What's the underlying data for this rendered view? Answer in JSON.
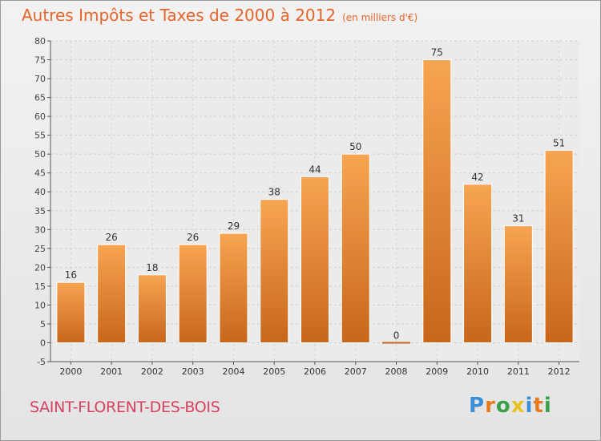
{
  "title": "Autres Impôts et Taxes de 2000 à 2012",
  "subtitle": "(en milliers d'€)",
  "commune": "SAINT-FLORENT-DES-BOIS",
  "logo": {
    "text": "Proxiti",
    "letters": [
      "P",
      "r",
      "o",
      "x",
      "i",
      "t",
      "i"
    ],
    "colors": [
      "#3b8fd6",
      "#e87a1e",
      "#3aa14a",
      "#e8c21e",
      "#3b8fd6",
      "#e87a1e",
      "#3aa14a"
    ]
  },
  "colors": {
    "bar_top": "#f7a552",
    "bar_bottom": "#c8661a",
    "title": "#e8642a",
    "commune": "#d84060"
  },
  "chart_data": {
    "type": "bar",
    "categories": [
      "2000",
      "2001",
      "2002",
      "2003",
      "2004",
      "2005",
      "2006",
      "2007",
      "2008",
      "2009",
      "2010",
      "2011",
      "2012"
    ],
    "values": [
      16,
      26,
      18,
      26,
      29,
      38,
      44,
      50,
      0,
      75,
      42,
      31,
      51
    ],
    "data_labels": [
      "16",
      "26",
      "18",
      "26",
      "29",
      "38",
      "44",
      "50",
      "0",
      "75",
      "42",
      "31",
      "51"
    ],
    "yticks": [
      "-5",
      "0",
      "5",
      "10",
      "15",
      "20",
      "25",
      "30",
      "35",
      "40",
      "45",
      "50",
      "55",
      "60",
      "65",
      "70",
      "75",
      "80"
    ],
    "ylim": [
      -5,
      80
    ],
    "grid": true,
    "legend": "none"
  }
}
